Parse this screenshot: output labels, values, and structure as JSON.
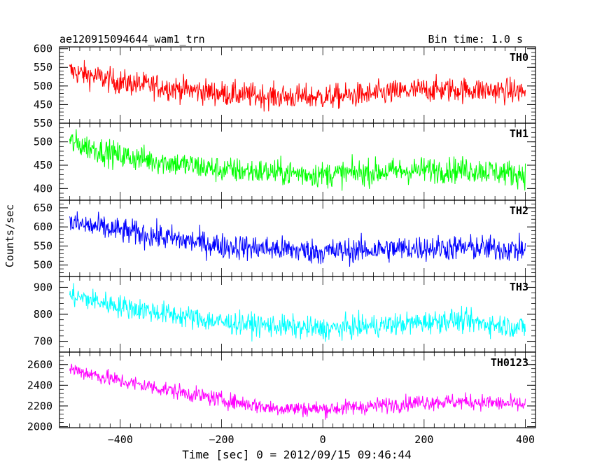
{
  "header": {
    "title": "ae120915094644_wam1_trn",
    "bin_time": "Bin time: 1.0 s"
  },
  "chart_data": {
    "type": "line",
    "xlabel": "Time [sec] 0 = 2012/09/15 09:46:44",
    "ylabel": "Counts/sec",
    "xlim": [
      -520,
      420
    ],
    "x_ticks": [
      -400,
      -200,
      0,
      200,
      400
    ],
    "x_tick_labels": [
      "−400",
      "−200",
      "0",
      "200",
      "400"
    ],
    "x_start": -500,
    "x_end": 400,
    "bin_time": 1.0,
    "panels": [
      {
        "name": "TH0",
        "color": "#ff0000",
        "ylim": [
          400,
          605
        ],
        "y_ticks": [
          450,
          500,
          550,
          600
        ],
        "y_tick_labels": [
          "450",
          "500",
          "550",
          "600"
        ],
        "trend": [
          [
            -500,
            540
          ],
          [
            -400,
            510
          ],
          [
            -200,
            480
          ],
          [
            -100,
            472
          ],
          [
            0,
            470
          ],
          [
            100,
            478
          ],
          [
            200,
            490
          ],
          [
            300,
            490
          ],
          [
            400,
            485
          ]
        ],
        "noise": 24
      },
      {
        "name": "TH1",
        "color": "#00ff00",
        "ylim": [
          375,
          540
        ],
        "y_ticks": [
          400,
          450,
          500
        ],
        "y_tick_labels": [
          "400",
          "450",
          "500"
        ],
        "top_overlap_label": "550",
        "trend": [
          [
            -500,
            500
          ],
          [
            -400,
            470
          ],
          [
            -200,
            440
          ],
          [
            0,
            430
          ],
          [
            200,
            440
          ],
          [
            300,
            440
          ],
          [
            400,
            430
          ]
        ],
        "noise": 20
      },
      {
        "name": "TH2",
        "color": "#0000ff",
        "ylim": [
          470,
          670
        ],
        "y_ticks": [
          500,
          550,
          600,
          650
        ],
        "y_tick_labels": [
          "500",
          "550",
          "600",
          "650"
        ],
        "trend": [
          [
            -500,
            610
          ],
          [
            -400,
            590
          ],
          [
            -200,
            550
          ],
          [
            0,
            535
          ],
          [
            200,
            545
          ],
          [
            300,
            545
          ],
          [
            400,
            540
          ]
        ],
        "noise": 24
      },
      {
        "name": "TH3",
        "color": "#00ffff",
        "ylim": [
          660,
          940
        ],
        "y_ticks": [
          700,
          800,
          900
        ],
        "y_tick_labels": [
          "700",
          "800",
          "900"
        ],
        "trend": [
          [
            -500,
            870
          ],
          [
            -400,
            830
          ],
          [
            -200,
            770
          ],
          [
            0,
            745
          ],
          [
            200,
            770
          ],
          [
            250,
            780
          ],
          [
            400,
            750
          ]
        ],
        "noise": 30
      },
      {
        "name": "TH0123",
        "color": "#ff00ff",
        "ylim": [
          1990,
          2720
        ],
        "y_ticks": [
          2000,
          2200,
          2400,
          2600
        ],
        "y_tick_labels": [
          "2000",
          "2200",
          "2400",
          "2600"
        ],
        "trend": [
          [
            -500,
            2560
          ],
          [
            -400,
            2440
          ],
          [
            -200,
            2260
          ],
          [
            -100,
            2180
          ],
          [
            0,
            2170
          ],
          [
            100,
            2200
          ],
          [
            200,
            2240
          ],
          [
            300,
            2240
          ],
          [
            400,
            2210
          ]
        ],
        "noise": 55
      }
    ]
  }
}
